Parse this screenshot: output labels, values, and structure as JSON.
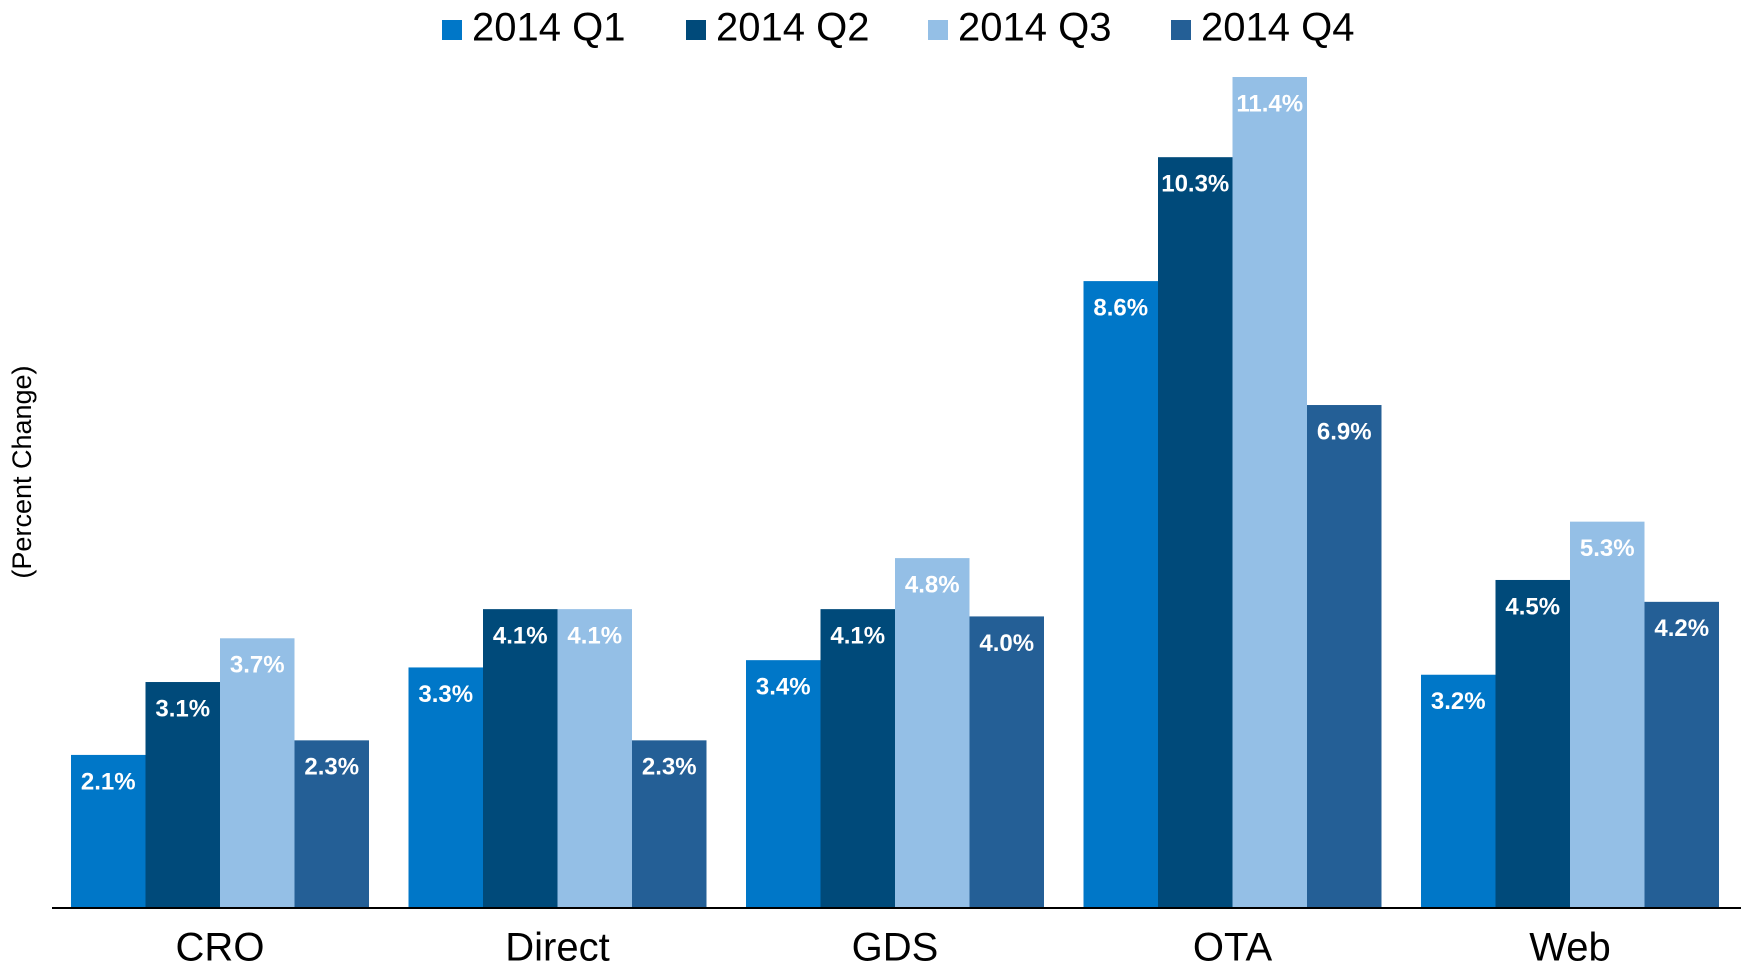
{
  "chart_data": {
    "type": "bar",
    "y_label": "(Percent Change)",
    "categories": [
      "CRO",
      "Direct",
      "GDS",
      "OTA",
      "Web"
    ],
    "series": [
      {
        "name": "2014 Q1",
        "color": "#0077c8",
        "values": [
          2.1,
          3.3,
          3.4,
          8.6,
          3.2
        ],
        "value_labels": [
          "2.1%",
          "3.3%",
          "3.4%",
          "8.6%",
          "3.2%"
        ]
      },
      {
        "name": "2014 Q2",
        "color": "#004a7a",
        "values": [
          3.1,
          4.1,
          4.1,
          10.3,
          4.5
        ],
        "value_labels": [
          "3.1%",
          "4.1%",
          "4.1%",
          "10.3%",
          "4.5%"
        ]
      },
      {
        "name": "2014 Q3",
        "color": "#94bfe6",
        "values": [
          3.7,
          4.1,
          4.8,
          11.4,
          5.3
        ],
        "value_labels": [
          "3.7%",
          "4.1%",
          "4.8%",
          "11.4%",
          "5.3%"
        ]
      },
      {
        "name": "2014 Q4",
        "color": "#245f96",
        "values": [
          2.3,
          2.3,
          4.0,
          6.9,
          4.2
        ],
        "value_labels": [
          "2.3%",
          "2.3%",
          "4.0%",
          "6.9%",
          "4.2%"
        ]
      }
    ]
  }
}
